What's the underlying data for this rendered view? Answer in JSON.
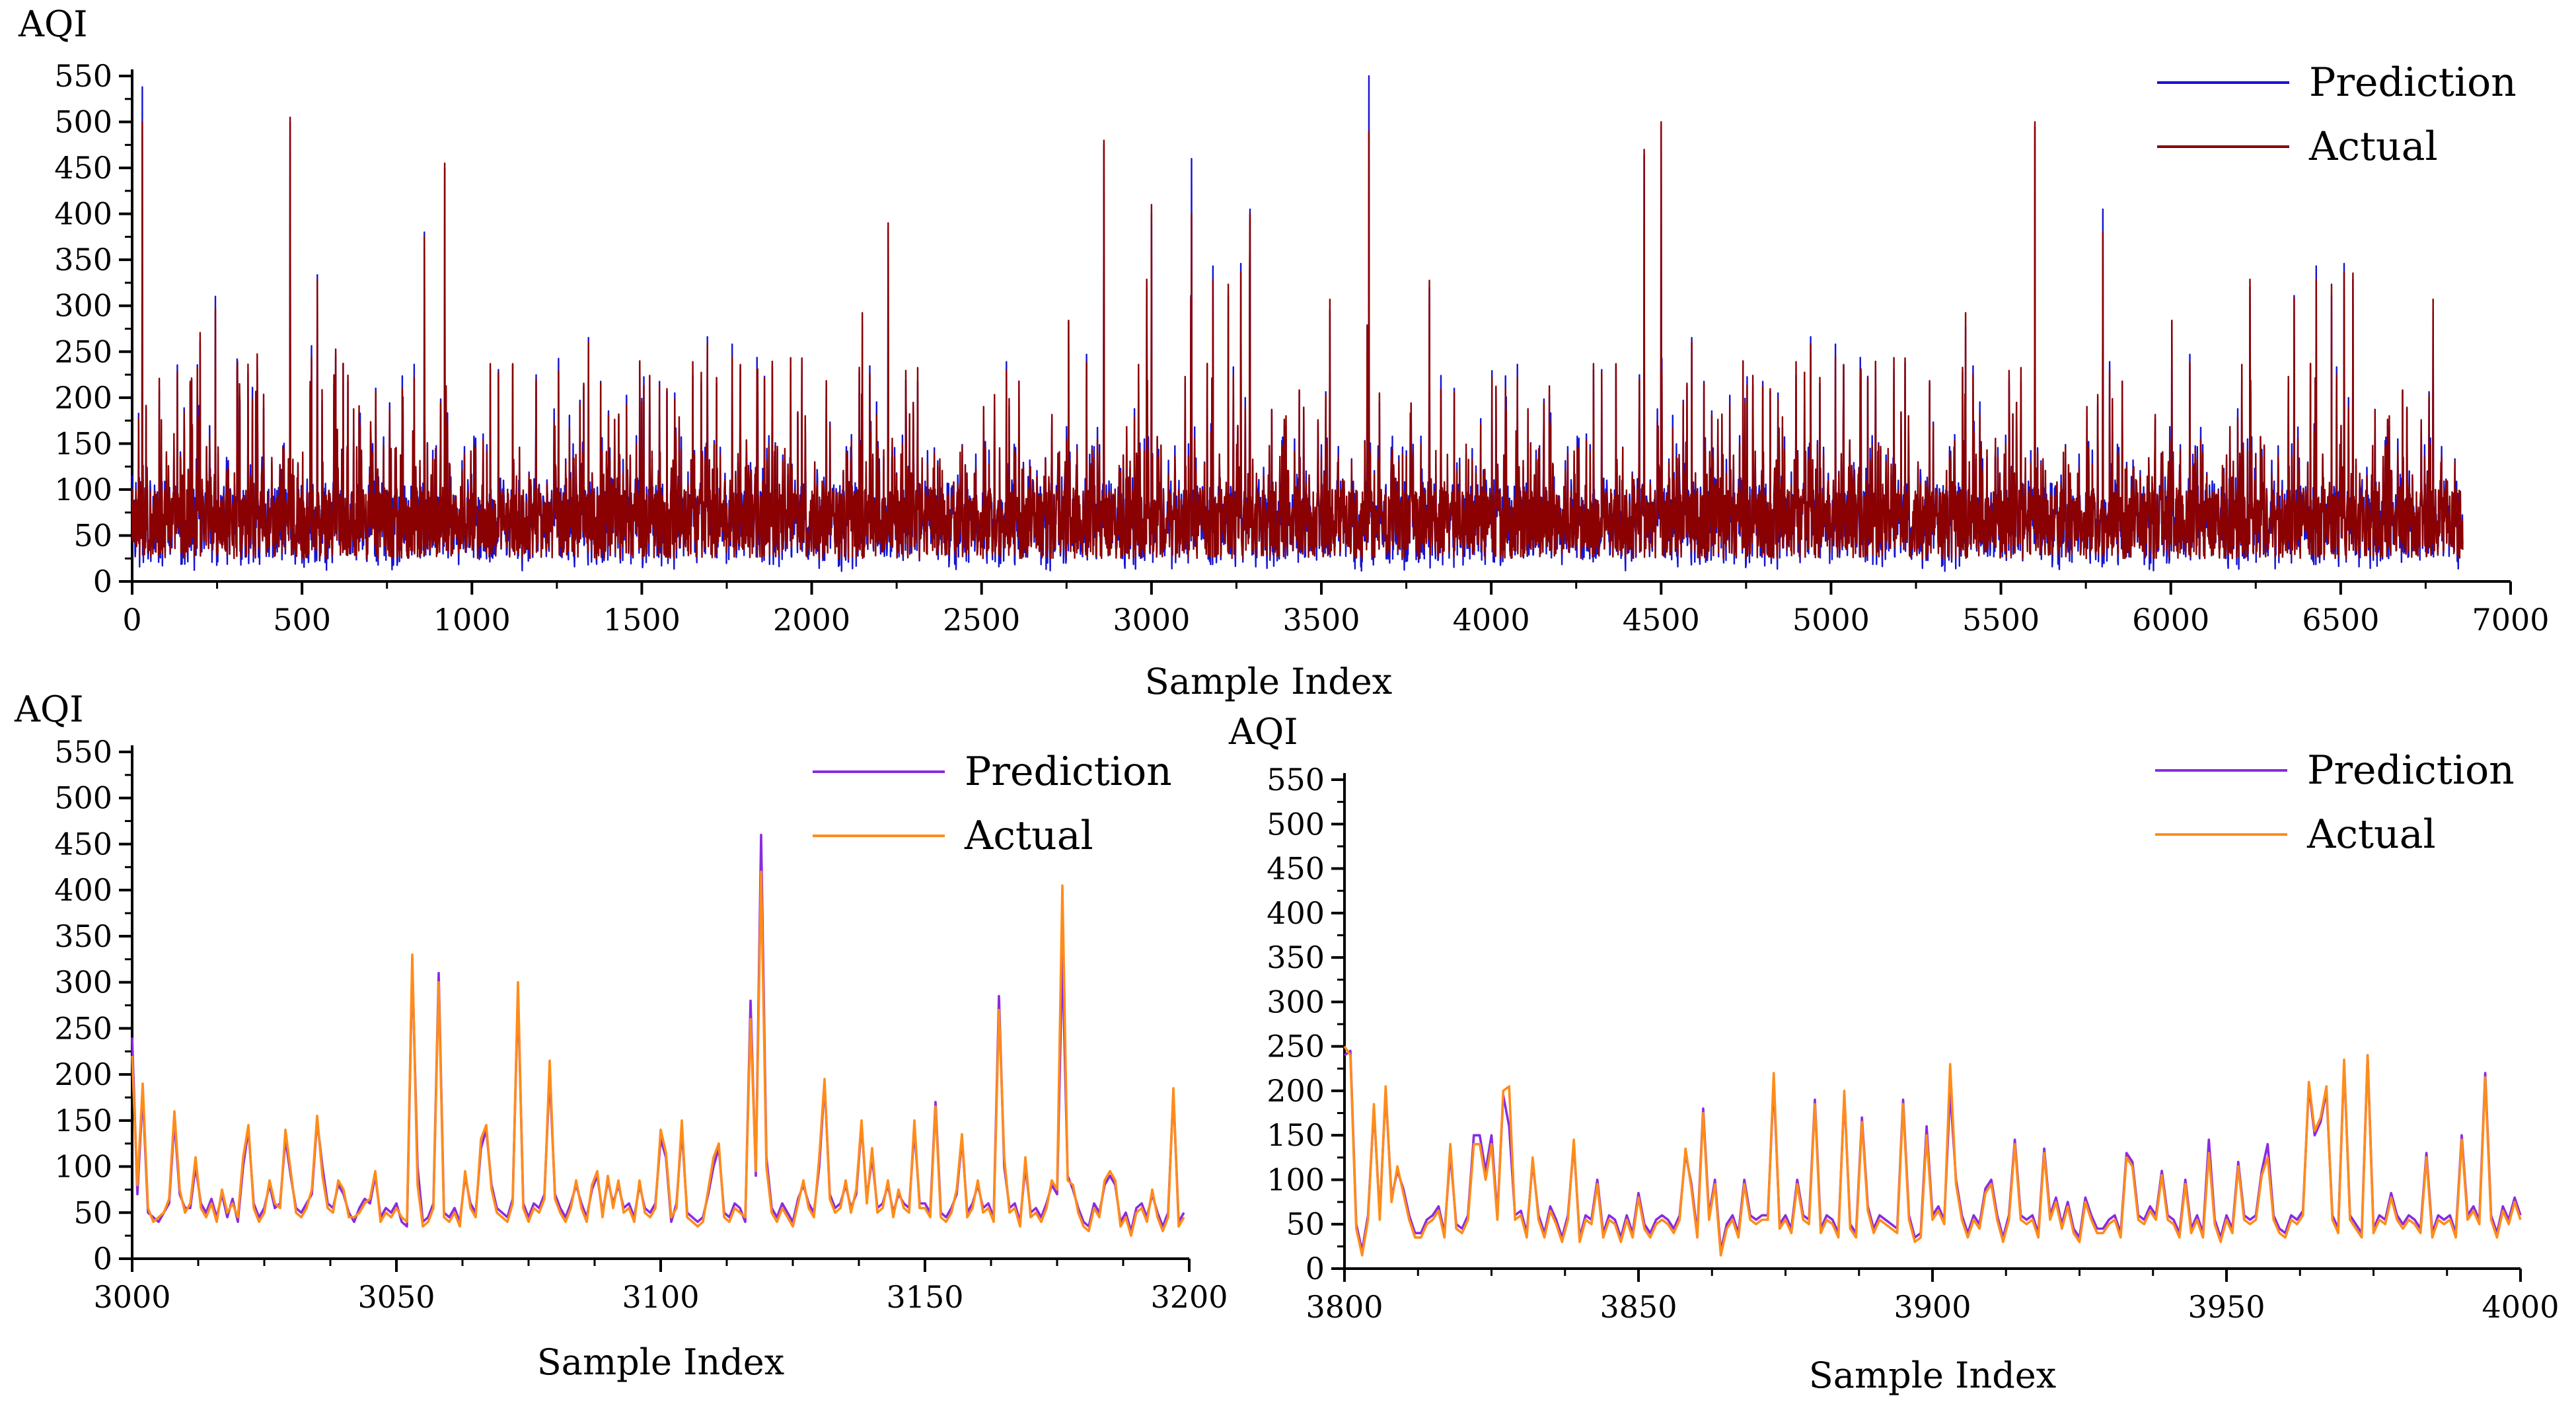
{
  "chart_data": [
    {
      "type": "line",
      "panel": "top",
      "title": "",
      "xlabel": "Sample Index",
      "ylabel": "AQI",
      "xlim": [
        0,
        7000
      ],
      "ylim": [
        0,
        550
      ],
      "xticks": [
        "0",
        "500",
        "1000",
        "1500",
        "2000",
        "2500",
        "3000",
        "3500",
        "4000",
        "4500",
        "5000",
        "5500",
        "6000",
        "6500",
        "7000"
      ],
      "yticks": [
        "0",
        "50",
        "100",
        "150",
        "200",
        "250",
        "300",
        "350",
        "400",
        "450",
        "500",
        "550"
      ],
      "n_points": 6860,
      "legend_position": "top-right",
      "series": [
        {
          "name": "Prediction",
          "color": "#1414d2",
          "description_values": "noisy series mostly 20-150 with spikes"
        },
        {
          "name": "Actual",
          "color": "#8b0000"
        }
      ],
      "peaks": [
        {
          "x": 30,
          "prediction": 538,
          "actual": 500
        },
        {
          "x": 465,
          "prediction": 500,
          "actual": 505
        },
        {
          "x": 920,
          "prediction": 450,
          "actual": 455
        },
        {
          "x": 2225,
          "prediction": 385,
          "actual": 390
        },
        {
          "x": 2860,
          "prediction": 475,
          "actual": 480
        },
        {
          "x": 3118,
          "prediction": 460,
          "actual": 400
        },
        {
          "x": 3640,
          "prediction": 550,
          "actual": 490
        },
        {
          "x": 4450,
          "prediction": 465,
          "actual": 470
        },
        {
          "x": 4500,
          "prediction": 495,
          "actual": 500
        },
        {
          "x": 5600,
          "prediction": 495,
          "actual": 500
        },
        {
          "x": 5800,
          "prediction": 405,
          "actual": 380
        },
        {
          "x": 3000,
          "prediction": 400,
          "actual": 410
        },
        {
          "x": 3290,
          "prediction": 405,
          "actual": 400
        },
        {
          "x": 860,
          "prediction": 380,
          "actual": 375
        }
      ]
    },
    {
      "type": "line",
      "panel": "bottom-left",
      "title": "",
      "xlabel": "Sample Index",
      "ylabel": "AQI",
      "xlim": [
        3000,
        3200
      ],
      "ylim": [
        0,
        550
      ],
      "xticks": [
        "3000",
        "3050",
        "3100",
        "3150",
        "3200"
      ],
      "yticks": [
        "0",
        "50",
        "100",
        "150",
        "200",
        "250",
        "300",
        "350",
        "400",
        "450",
        "500",
        "550"
      ],
      "legend_position": "top-right",
      "x_start": 3000,
      "series": [
        {
          "name": "Prediction",
          "color": "#8a2be2",
          "values": [
            240,
            70,
            180,
            50,
            45,
            40,
            50,
            60,
            150,
            70,
            55,
            55,
            100,
            60,
            50,
            65,
            45,
            70,
            45,
            65,
            40,
            100,
            140,
            60,
            45,
            55,
            80,
            55,
            60,
            130,
            90,
            55,
            50,
            60,
            70,
            150,
            100,
            60,
            55,
            80,
            70,
            50,
            40,
            55,
            65,
            60,
            90,
            45,
            55,
            50,
            60,
            40,
            35,
            320,
            100,
            40,
            45,
            60,
            310,
            50,
            45,
            55,
            40,
            90,
            60,
            50,
            120,
            140,
            80,
            55,
            50,
            45,
            65,
            290,
            60,
            45,
            60,
            55,
            70,
            200,
            70,
            55,
            45,
            60,
            80,
            60,
            45,
            75,
            90,
            50,
            85,
            60,
            80,
            55,
            60,
            45,
            80,
            55,
            50,
            60,
            130,
            110,
            40,
            60,
            140,
            50,
            45,
            40,
            45,
            70,
            100,
            120,
            50,
            45,
            60,
            55,
            40,
            280,
            90,
            460,
            110,
            55,
            45,
            60,
            50,
            40,
            65,
            80,
            60,
            50,
            100,
            190,
            70,
            55,
            60,
            80,
            55,
            70,
            145,
            65,
            110,
            55,
            60,
            80,
            50,
            70,
            60,
            55,
            140,
            60,
            60,
            50,
            170,
            50,
            45,
            55,
            70,
            130,
            50,
            60,
            80,
            55,
            60,
            45,
            285,
            100,
            55,
            60,
            40,
            100,
            50,
            55,
            45,
            60,
            80,
            70,
            330,
            90,
            75,
            55,
            40,
            35,
            60,
            50,
            80,
            90,
            80,
            40,
            50,
            30,
            55,
            60,
            45,
            70,
            50,
            35,
            50,
            180,
            40,
            50
          ]
        },
        {
          "name": "Actual",
          "color": "#ff8c1a",
          "values": [
            220,
            80,
            190,
            55,
            40,
            45,
            50,
            65,
            160,
            75,
            50,
            60,
            110,
            55,
            45,
            60,
            40,
            75,
            50,
            60,
            45,
            110,
            145,
            55,
            40,
            50,
            85,
            60,
            55,
            140,
            95,
            50,
            45,
            55,
            75,
            155,
            90,
            55,
            50,
            85,
            75,
            45,
            45,
            50,
            60,
            65,
            95,
            40,
            50,
            45,
            55,
            45,
            40,
            330,
            80,
            35,
            40,
            55,
            300,
            45,
            40,
            50,
            35,
            95,
            55,
            45,
            130,
            145,
            75,
            50,
            45,
            40,
            60,
            300,
            55,
            40,
            55,
            50,
            65,
            215,
            65,
            50,
            40,
            55,
            85,
            55,
            40,
            80,
            95,
            45,
            90,
            55,
            85,
            50,
            55,
            40,
            85,
            50,
            45,
            55,
            140,
            115,
            45,
            55,
            150,
            45,
            40,
            35,
            40,
            75,
            110,
            125,
            45,
            40,
            55,
            50,
            45,
            260,
            95,
            420,
            100,
            50,
            40,
            55,
            45,
            35,
            60,
            85,
            55,
            45,
            110,
            195,
            65,
            50,
            55,
            85,
            50,
            75,
            150,
            60,
            120,
            50,
            55,
            85,
            45,
            75,
            55,
            50,
            150,
            55,
            55,
            45,
            165,
            45,
            40,
            50,
            75,
            135,
            45,
            55,
            85,
            50,
            55,
            40,
            270,
            110,
            50,
            55,
            35,
            110,
            45,
            50,
            40,
            55,
            85,
            75,
            405,
            85,
            80,
            50,
            35,
            30,
            55,
            45,
            85,
            95,
            85,
            35,
            45,
            25,
            50,
            55,
            40,
            75,
            45,
            30,
            45,
            185,
            35,
            45
          ]
        }
      ]
    },
    {
      "type": "line",
      "panel": "bottom-right",
      "title": "",
      "xlabel": "Sample Index",
      "ylabel": "AQI",
      "xlim": [
        3800,
        4000
      ],
      "ylim": [
        0,
        550
      ],
      "xticks": [
        "3800",
        "3850",
        "3900",
        "3950",
        "4000"
      ],
      "yticks": [
        "0",
        "50",
        "100",
        "150",
        "200",
        "250",
        "300",
        "350",
        "400",
        "450",
        "500",
        "550"
      ],
      "legend_position": "top-right",
      "x_start": 3800,
      "series": [
        {
          "name": "Prediction",
          "color": "#8a2be2",
          "values": [
            240,
            245,
            50,
            20,
            60,
            180,
            60,
            200,
            80,
            110,
            90,
            60,
            40,
            40,
            55,
            60,
            70,
            40,
            130,
            50,
            45,
            60,
            150,
            150,
            110,
            150,
            60,
            195,
            160,
            60,
            65,
            40,
            120,
            60,
            40,
            70,
            55,
            35,
            60,
            140,
            35,
            60,
            55,
            100,
            40,
            60,
            55,
            35,
            60,
            40,
            85,
            50,
            40,
            55,
            60,
            55,
            45,
            60,
            130,
            95,
            40,
            180,
            60,
            100,
            20,
            50,
            60,
            40,
            100,
            60,
            55,
            60,
            60,
            210,
            50,
            60,
            45,
            100,
            60,
            55,
            190,
            45,
            60,
            55,
            40,
            195,
            50,
            40,
            170,
            70,
            45,
            60,
            55,
            50,
            45,
            190,
            60,
            35,
            40,
            160,
            60,
            70,
            55,
            200,
            100,
            60,
            40,
            60,
            50,
            90,
            100,
            60,
            35,
            60,
            145,
            60,
            55,
            60,
            40,
            135,
            60,
            80,
            50,
            75,
            45,
            35,
            80,
            60,
            45,
            45,
            55,
            60,
            40,
            130,
            120,
            60,
            55,
            70,
            60,
            110,
            60,
            55,
            40,
            100,
            45,
            60,
            40,
            145,
            55,
            35,
            60,
            45,
            120,
            60,
            55,
            60,
            110,
            140,
            60,
            45,
            40,
            60,
            55,
            65,
            205,
            150,
            165,
            200,
            60,
            45,
            230,
            60,
            50,
            40,
            240,
            45,
            60,
            55,
            85,
            60,
            50,
            60,
            55,
            45,
            130,
            40,
            60,
            55,
            60,
            40,
            150,
            60,
            70,
            55,
            220,
            60,
            40,
            70,
            55,
            80,
            60
          ]
        },
        {
          "name": "Actual",
          "color": "#ff8c1a",
          "values": [
            250,
            240,
            45,
            15,
            55,
            185,
            55,
            205,
            75,
            115,
            85,
            55,
            35,
            35,
            50,
            55,
            65,
            35,
            140,
            45,
            40,
            55,
            140,
            140,
            100,
            140,
            55,
            200,
            205,
            55,
            60,
            35,
            125,
            55,
            35,
            65,
            50,
            30,
            55,
            145,
            30,
            55,
            50,
            95,
            35,
            55,
            50,
            30,
            55,
            35,
            80,
            45,
            35,
            50,
            55,
            50,
            40,
            55,
            135,
            90,
            35,
            175,
            55,
            95,
            15,
            45,
            55,
            35,
            95,
            55,
            50,
            55,
            55,
            220,
            45,
            55,
            40,
            95,
            55,
            50,
            185,
            40,
            55,
            50,
            35,
            200,
            45,
            35,
            165,
            65,
            40,
            55,
            50,
            45,
            40,
            185,
            55,
            30,
            35,
            150,
            55,
            65,
            50,
            230,
            95,
            55,
            35,
            55,
            45,
            85,
            95,
            55,
            30,
            55,
            140,
            55,
            50,
            55,
            35,
            130,
            55,
            75,
            45,
            70,
            40,
            30,
            75,
            55,
            40,
            40,
            50,
            55,
            35,
            125,
            115,
            55,
            50,
            65,
            55,
            105,
            55,
            50,
            35,
            95,
            40,
            55,
            35,
            130,
            50,
            30,
            55,
            40,
            115,
            55,
            50,
            55,
            105,
            125,
            55,
            40,
            35,
            55,
            50,
            60,
            210,
            155,
            170,
            205,
            55,
            40,
            235,
            55,
            45,
            35,
            240,
            40,
            55,
            50,
            80,
            55,
            45,
            55,
            50,
            40,
            125,
            35,
            55,
            50,
            55,
            35,
            145,
            55,
            65,
            50,
            215,
            55,
            35,
            65,
            50,
            75,
            55
          ]
        }
      ]
    }
  ]
}
